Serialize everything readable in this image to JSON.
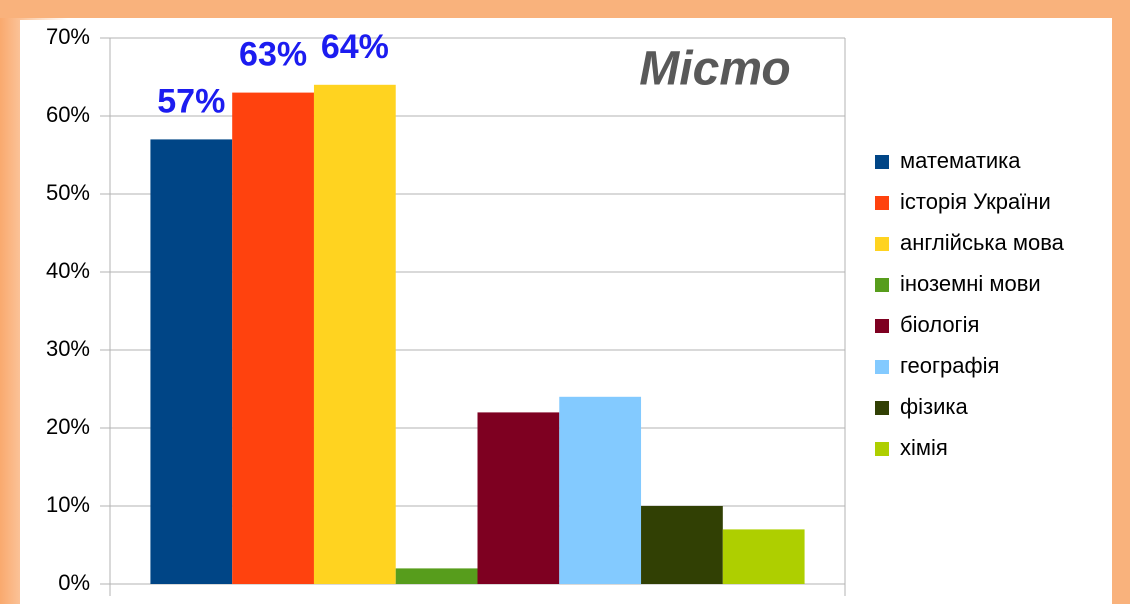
{
  "chart_data": {
    "type": "bar",
    "title": "Місто",
    "categories": [
      null
    ],
    "series": [
      {
        "name": "математика",
        "color": "#004586",
        "values": [
          57
        ],
        "value_labels": [
          "57%"
        ]
      },
      {
        "name": "історія України",
        "color": "#ff420e",
        "values": [
          63
        ],
        "value_labels": [
          "63%"
        ]
      },
      {
        "name": "англійська мова",
        "color": "#ffd320",
        "values": [
          64
        ],
        "value_labels": [
          "64%"
        ]
      },
      {
        "name": "іноземні мови",
        "color": "#579d1c",
        "values": [
          2
        ]
      },
      {
        "name": "біологія",
        "color": "#7e0021",
        "values": [
          22
        ]
      },
      {
        "name": "географія",
        "color": "#83caff",
        "values": [
          24
        ]
      },
      {
        "name": "фізика",
        "color": "#314004",
        "values": [
          10
        ]
      },
      {
        "name": "хімія",
        "color": "#aecf00",
        "values": [
          7
        ]
      }
    ],
    "ylim": [
      0,
      70
    ],
    "yticks": [
      {
        "value": 0,
        "label": "0%"
      },
      {
        "value": 10,
        "label": "10%"
      },
      {
        "value": 20,
        "label": "20%"
      },
      {
        "value": 30,
        "label": "30%"
      },
      {
        "value": 40,
        "label": "40%"
      },
      {
        "value": 50,
        "label": "50%"
      },
      {
        "value": 60,
        "label": "60%"
      },
      {
        "value": 70,
        "label": "70%"
      }
    ],
    "grid": true,
    "legend": "right"
  }
}
